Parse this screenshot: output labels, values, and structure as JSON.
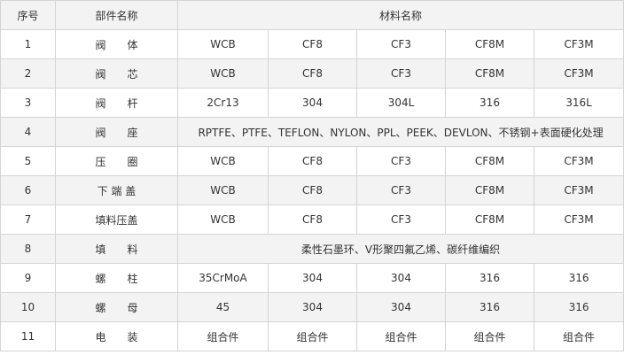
{
  "table": {
    "header": [
      "序号",
      "部件名称",
      "材料名称"
    ],
    "rows": [
      [
        "1",
        "阀　　体",
        "WCB",
        "CF8",
        "CF3",
        "CF8M",
        "CF3M"
      ],
      [
        "2",
        "阀　　芯",
        "WCB",
        "CF8",
        "CF3",
        "CF8M",
        "CF3M"
      ],
      [
        "3",
        "阀　　杆",
        "2Cr13",
        "304",
        "304L",
        "316",
        "316L"
      ],
      [
        "4",
        "阀　　座",
        "RPTFE、PTFE、TEFLON、NYLON、PPL、PEEK、DEVLON、不锈钢+表面硬化处理"
      ],
      [
        "5",
        "压　　圈",
        "WCB",
        "CF8",
        "CF3",
        "CF8M",
        "CF3M"
      ],
      [
        "6",
        "下 端 盖",
        "WCB",
        "CF8",
        "CF3",
        "CF8M",
        "CF3M"
      ],
      [
        "7",
        "填料压盖",
        "WCB",
        "CF8",
        "CF3",
        "CF8M",
        "CF3M"
      ],
      [
        "8",
        "填　　料",
        "柔性石墨环、V形聚四氟乙烯、碳纤维编织"
      ],
      [
        "9",
        "螺　　柱",
        "35CrMoA",
        "304",
        "304",
        "316",
        "316"
      ],
      [
        "10",
        "螺　　母",
        "45",
        "304",
        "304",
        "316",
        "316"
      ],
      [
        "11",
        "电　　装",
        "组合件",
        "组合件",
        "组合件",
        "组合件",
        "组合件"
      ]
    ]
  }
}
